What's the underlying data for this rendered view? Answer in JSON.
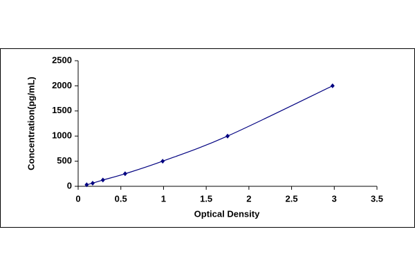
{
  "chart_data": {
    "type": "line",
    "x_label": "Optical Density",
    "y_label": "Concentration(pg/mL)",
    "x": [
      0.1,
      0.17,
      0.29,
      0.55,
      0.99,
      1.75,
      2.98
    ],
    "values": [
      31.25,
      62.5,
      125,
      250,
      500,
      1000,
      2000
    ],
    "color": "#000080",
    "xlim": [
      0,
      3.5
    ],
    "xticks": [
      0,
      0.5,
      1,
      1.5,
      2,
      2.5,
      3,
      3.5
    ],
    "ylim": [
      0,
      2500
    ],
    "yticks": [
      0,
      500,
      1000,
      1500,
      2000,
      2500
    ],
    "grid": false
  }
}
